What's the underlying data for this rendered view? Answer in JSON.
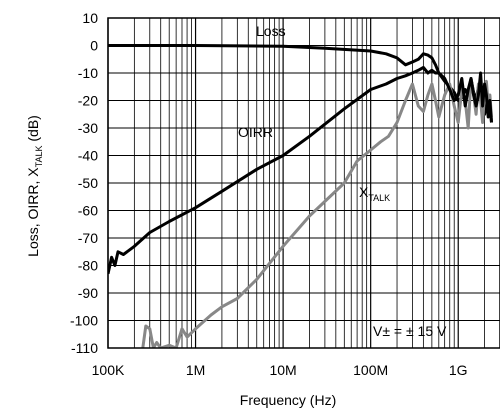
{
  "chart_data": {
    "type": "line",
    "xscale": "log",
    "xlabel": "Frequency (Hz)",
    "ylabel": {
      "main": "Loss, OIRR, X",
      "sub": "TALK",
      "tail": " (dB)"
    },
    "xlim": [
      100000,
      3000000000
    ],
    "ylim": [
      -110,
      10
    ],
    "grid": true,
    "x_ticks": [
      {
        "value": 100000,
        "label": "100K"
      },
      {
        "value": 1000000,
        "label": "1M"
      },
      {
        "value": 10000000,
        "label": "10M"
      },
      {
        "value": 100000000,
        "label": "100M"
      },
      {
        "value": 1000000000,
        "label": "1G"
      }
    ],
    "y_ticks": [
      10,
      0,
      -10,
      -20,
      -30,
      -40,
      -50,
      -60,
      -70,
      -80,
      -90,
      -100,
      -110
    ],
    "annotation": "V± = ± 15 V",
    "series": [
      {
        "name": "Loss",
        "color": "#000000",
        "x": [
          100000,
          1000000,
          10000000,
          30000000,
          100000000,
          150000000,
          200000000,
          250000000,
          300000000,
          350000000,
          400000000,
          450000000,
          500000000,
          550000000,
          600000000,
          700000000,
          800000000,
          900000000,
          1000000000,
          1100000000,
          1200000000,
          1300000000,
          1400000000,
          1500000000,
          1600000000,
          1700000000,
          1800000000,
          1900000000,
          2000000000,
          2100000000,
          2200000000,
          2300000000,
          2400000000
        ],
        "y": [
          0,
          0,
          -0.3,
          -1,
          -2,
          -3,
          -4.5,
          -7,
          -6,
          -5,
          -3,
          -3.5,
          -4.5,
          -7,
          -10,
          -13,
          -15,
          -17,
          -20,
          -19,
          -16,
          -18,
          -12,
          -17,
          -20,
          -15,
          -18,
          -19,
          -25,
          -22,
          -18,
          -20,
          -28
        ]
      },
      {
        "name": "OIRR",
        "color": "#000000",
        "x": [
          100000,
          110000,
          120000,
          130000,
          150000,
          200000,
          300000,
          500000,
          1000000,
          2000000,
          5000000,
          10000000,
          20000000,
          50000000,
          100000000,
          150000000,
          200000000,
          250000000,
          300000000,
          350000000,
          400000000,
          450000000,
          500000000,
          550000000,
          600000000,
          700000000,
          800000000,
          900000000,
          1000000000,
          1100000000,
          1200000000,
          1300000000,
          1400000000,
          1500000000,
          1600000000,
          1700000000,
          1800000000,
          1900000000,
          2000000000,
          2100000000,
          2200000000,
          2300000000,
          2400000000
        ],
        "y": [
          -83,
          -77,
          -80,
          -75,
          -76,
          -73,
          -68,
          -64,
          -59,
          -53,
          -45,
          -40,
          -33,
          -23,
          -16,
          -14,
          -12,
          -11,
          -10,
          -9,
          -8,
          -10,
          -9,
          -10,
          -10,
          -12,
          -16,
          -20,
          -18,
          -12,
          -22,
          -16,
          -12,
          -18,
          -22,
          -18,
          -10,
          -22,
          -14,
          -18,
          -26,
          -20,
          -28
        ]
      },
      {
        "name": "X_TALK",
        "color": "#888888",
        "x": [
          250000,
          270000,
          300000,
          330000,
          360000,
          400000,
          500000,
          600000,
          700000,
          800000,
          1000000,
          1500000,
          2000000,
          3000000,
          5000000,
          10000000,
          20000000,
          50000000,
          70000000,
          100000000,
          130000000,
          160000000,
          200000000,
          250000000,
          300000000,
          350000000,
          400000000,
          450000000,
          500000000,
          550000000,
          600000000,
          700000000,
          800000000,
          900000000,
          1000000000,
          1100000000,
          1200000000,
          1300000000,
          1400000000,
          1500000000,
          1600000000,
          1700000000,
          1800000000,
          1900000000,
          2000000000,
          2100000000,
          2200000000,
          2300000000,
          2400000000
        ],
        "y": [
          -110,
          -102,
          -103,
          -110,
          -108,
          -110,
          -109,
          -110,
          -103,
          -106,
          -103,
          -98,
          -95,
          -92,
          -85,
          -73,
          -62,
          -50,
          -42,
          -38,
          -35,
          -33,
          -28,
          -20,
          -14,
          -22,
          -24,
          -18,
          -14,
          -20,
          -26,
          -18,
          -14,
          -22,
          -28,
          -16,
          -20,
          -30,
          -12,
          -18,
          -25,
          -14,
          -20,
          -28,
          -17,
          -13,
          -22,
          -18,
          -26
        ]
      }
    ],
    "labels": {
      "loss": "Loss",
      "oirr": "OIRR",
      "xtalk_main": "X",
      "xtalk_sub": "TALK"
    }
  }
}
